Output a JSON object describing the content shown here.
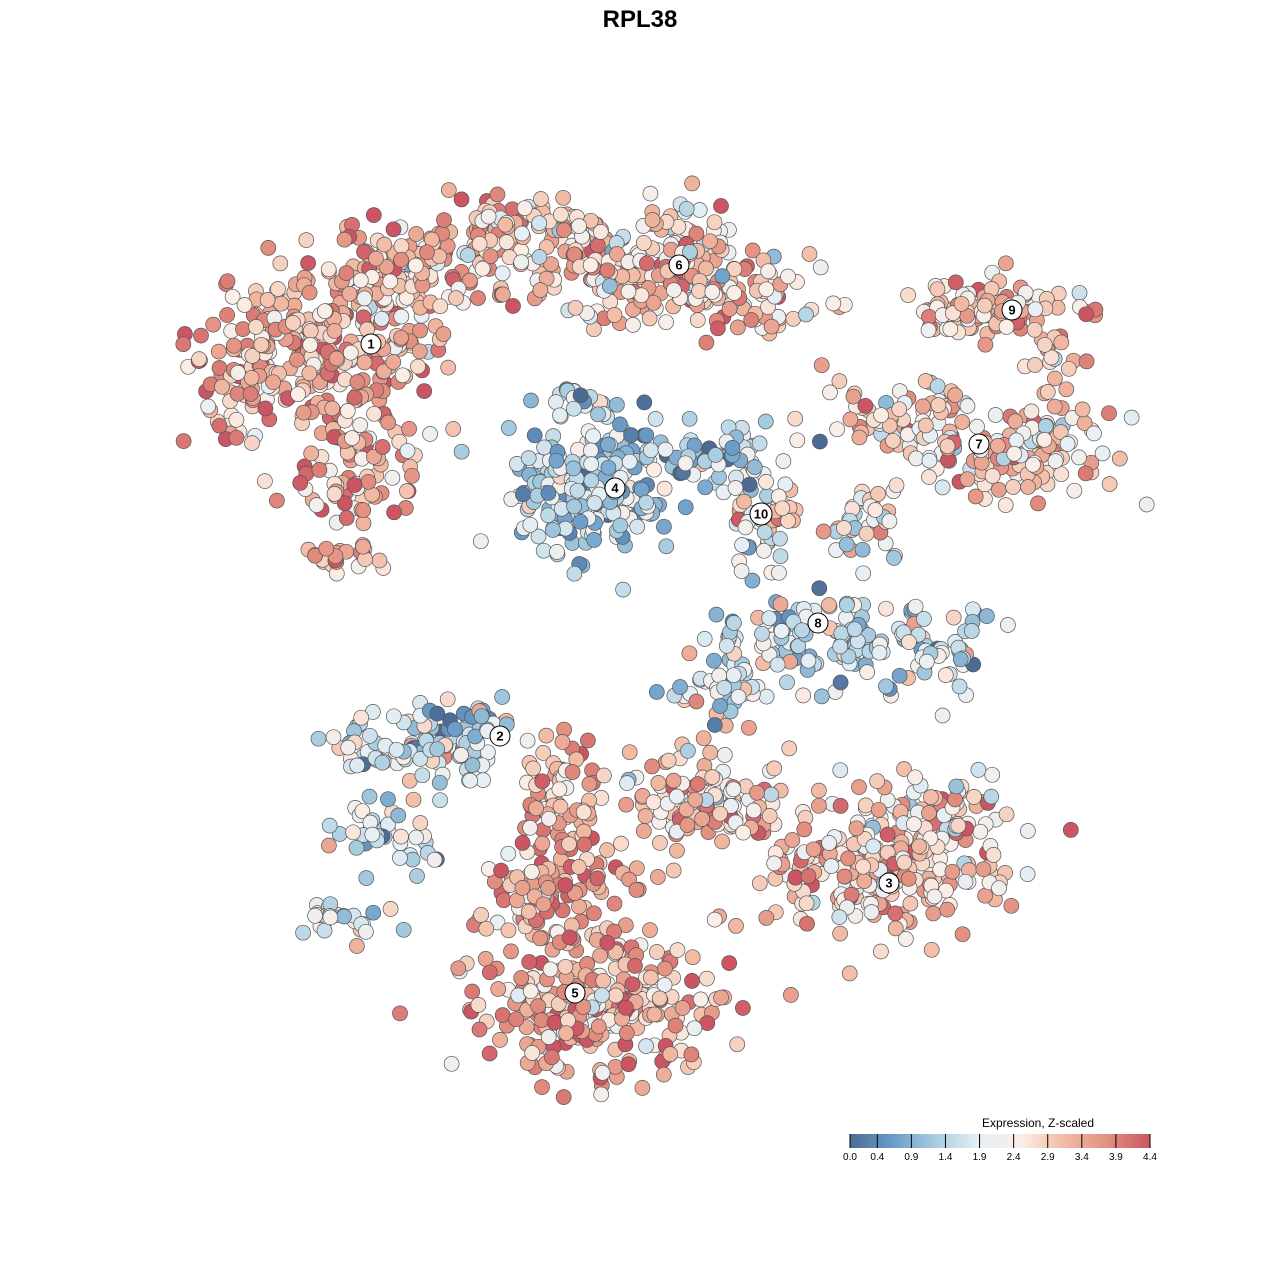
{
  "chart_data": {
    "type": "scatter",
    "title": "RPL38",
    "legend": {
      "title": "Expression, Z-scaled",
      "ticks": [
        "0.0",
        "0.4",
        "0.9",
        "1.4",
        "1.9",
        "2.4",
        "2.9",
        "3.4",
        "3.9",
        "4.4"
      ],
      "range": [
        0.0,
        4.4
      ],
      "placement": "bottom-right",
      "colors": [
        "#4b6b94",
        "#6a9cc9",
        "#a8cde0",
        "#e6eff5",
        "#fbeee6",
        "#f2bba4",
        "#e38f80",
        "#cc5563"
      ]
    },
    "grid": false,
    "axes_visible": false,
    "clusters": [
      {
        "label": "1",
        "mean_expression": 3.3
      },
      {
        "label": "2",
        "mean_expression": 1.7
      },
      {
        "label": "3",
        "mean_expression": 3.0
      },
      {
        "label": "4",
        "mean_expression": 1.3
      },
      {
        "label": "5",
        "mean_expression": 3.4
      },
      {
        "label": "6",
        "mean_expression": 2.9
      },
      {
        "label": "7",
        "mean_expression": 2.9
      },
      {
        "label": "8",
        "mean_expression": 1.8
      },
      {
        "label": "9",
        "mean_expression": 3.1
      },
      {
        "label": "10",
        "mean_expression": 2.4
      }
    ]
  }
}
